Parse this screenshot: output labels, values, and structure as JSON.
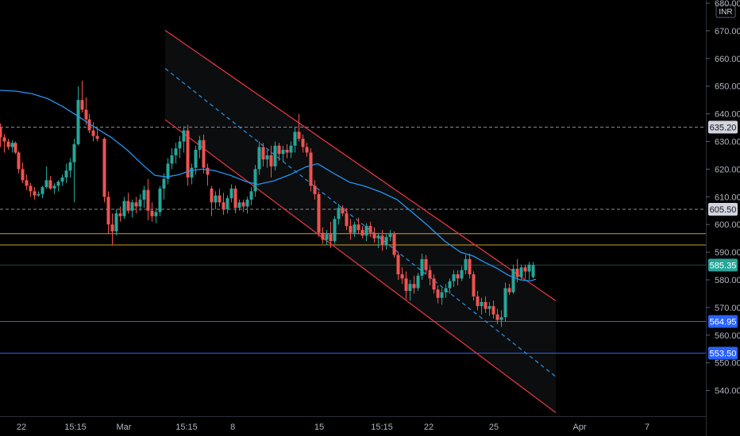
{
  "chart_data": {
    "type": "candlestick",
    "currency": "INR",
    "y_axis": {
      "range": [
        532,
        680
      ],
      "ticks": [
        "680.00",
        "670.00",
        "660.00",
        "650.00",
        "640.00",
        "630.00",
        "620.00",
        "610.00",
        "600.00",
        "590.00",
        "580.00",
        "570.00",
        "560.00",
        "550.00",
        "540.00"
      ]
    },
    "x_axis": {
      "ticks": [
        "22",
        "15:15",
        "Mar",
        "15:15",
        "8",
        "15",
        "15:15",
        "22",
        "25",
        "Apr",
        "7"
      ]
    },
    "price_lines": [
      {
        "label": "635.20",
        "price": 635.2,
        "style": "dashed",
        "color": "#8a8d94",
        "badge_bg": "#d1d4dc",
        "badge_fg": "dark"
      },
      {
        "label": "605.50",
        "price": 605.5,
        "style": "dashed",
        "color": "#8a8d94",
        "badge_bg": "#d1d4dc",
        "badge_fg": "dark"
      },
      {
        "label": "585.35",
        "price": 585.35,
        "style": "solid",
        "color": "#1c4a3a",
        "badge_bg": "#26a69a",
        "badge_fg": "light"
      },
      {
        "label": "564.95",
        "price": 564.95,
        "style": "solid",
        "color": "#2962ff",
        "badge_bg": "#2962ff",
        "badge_fg": "light"
      },
      {
        "label": "553.50",
        "price": 553.5,
        "style": "solid",
        "color": "#2962ff",
        "badge_bg": "#2962ff",
        "badge_fg": "light"
      }
    ],
    "horizontal_levels": [
      {
        "price": 596.7,
        "color": "#c9a227"
      },
      {
        "price": 592.6,
        "color": "#c9a227"
      }
    ],
    "channel": {
      "upper": [
        [
          208,
          670.2
        ],
        [
          700,
          572.4
        ]
      ],
      "lower": [
        [
          208,
          637.9
        ],
        [
          700,
          532.0
        ]
      ],
      "middle": [
        [
          208,
          656.4
        ],
        [
          700,
          545.0
        ]
      ],
      "color": "#f23645",
      "middle_color": "#2196f3"
    },
    "moving_average": {
      "color": "#2196f3",
      "points": [
        [
          0,
          648.5
        ],
        [
          20,
          648.2
        ],
        [
          40,
          647.3
        ],
        [
          60,
          645.5
        ],
        [
          80,
          642.5
        ],
        [
          100,
          638.8
        ],
        [
          120,
          635.0
        ],
        [
          140,
          631.5
        ],
        [
          160,
          627.0
        ],
        [
          180,
          621.5
        ],
        [
          195,
          617.8
        ],
        [
          210,
          617.2
        ],
        [
          225,
          618.0
        ],
        [
          240,
          619.5
        ],
        [
          255,
          620.0
        ],
        [
          270,
          619.5
        ],
        [
          290,
          617.8
        ],
        [
          310,
          615.5
        ],
        [
          325,
          614.5
        ],
        [
          345,
          615.8
        ],
        [
          365,
          618.0
        ],
        [
          385,
          620.8
        ],
        [
          400,
          622.0
        ],
        [
          420,
          618.5
        ],
        [
          440,
          615.3
        ],
        [
          460,
          613.8
        ],
        [
          480,
          611.7
        ],
        [
          500,
          609.0
        ],
        [
          520,
          604.2
        ],
        [
          540,
          599.3
        ],
        [
          560,
          594.0
        ],
        [
          580,
          590.0
        ],
        [
          596,
          588.6
        ],
        [
          610,
          586.4
        ],
        [
          625,
          584.3
        ],
        [
          640,
          581.7
        ],
        [
          655,
          580.0
        ],
        [
          668,
          579.6
        ],
        [
          675,
          580.2
        ]
      ]
    },
    "candles": [
      [
        0,
        635.0,
        636.5,
        628.0,
        631.5
      ],
      [
        5,
        631.5,
        632.7,
        626.0,
        630.0
      ],
      [
        10,
        630.0,
        631.0,
        627.0,
        628.0
      ],
      [
        15,
        628.0,
        630.5,
        626.0,
        629.5
      ],
      [
        19,
        629.5,
        630.0,
        625.5,
        626.0
      ],
      [
        23,
        626.0,
        626.5,
        618.5,
        620.0
      ],
      [
        28,
        620.0,
        622.5,
        615.0,
        616.0
      ],
      [
        33,
        616.0,
        618.0,
        612.5,
        614.0
      ],
      [
        38,
        614.0,
        615.0,
        610.0,
        612.0
      ],
      [
        43,
        612.0,
        613.5,
        609.0,
        610.5
      ],
      [
        48,
        610.5,
        612.0,
        610.0,
        611.0
      ],
      [
        53,
        611.0,
        614.0,
        609.5,
        613.5
      ],
      [
        58,
        613.5,
        621.0,
        613.0,
        616.0
      ],
      [
        63,
        616.0,
        617.5,
        612.5,
        613.0
      ],
      [
        68,
        613.0,
        615.0,
        611.0,
        614.0
      ],
      [
        73,
        614.0,
        616.0,
        612.0,
        615.5
      ],
      [
        78,
        615.5,
        618.0,
        614.0,
        617.0
      ],
      [
        83,
        617.0,
        622.0,
        615.0,
        619.5
      ],
      [
        88,
        619.5,
        624.0,
        617.0,
        622.5
      ],
      [
        93,
        622.5,
        631.0,
        608.0,
        629.0
      ],
      [
        98,
        629.0,
        650.0,
        628.5,
        645.0
      ],
      [
        103,
        645.0,
        652.0,
        640.5,
        641.5
      ],
      [
        108,
        641.5,
        646.0,
        636.0,
        638.0
      ],
      [
        112,
        638.0,
        640.0,
        633.0,
        634.0
      ],
      [
        117,
        634.0,
        637.0,
        630.0,
        632.0
      ],
      [
        122,
        632.0,
        635.0,
        630.0,
        631.0
      ],
      [
        131,
        631.0,
        631.5,
        608.0,
        610.0
      ],
      [
        136,
        610.0,
        612.0,
        596.5,
        600.0
      ],
      [
        141,
        600.0,
        604.0,
        592.5,
        597.5
      ],
      [
        146,
        597.5,
        605.5,
        596.0,
        604.0
      ],
      [
        151,
        604.0,
        606.5,
        601.0,
        603.0
      ],
      [
        156,
        603.0,
        610.0,
        602.0,
        608.5
      ],
      [
        161,
        608.5,
        611.5,
        604.0,
        605.0
      ],
      [
        166,
        605.0,
        609.0,
        602.5,
        608.0
      ],
      [
        171,
        608.0,
        610.0,
        604.0,
        606.5
      ],
      [
        176,
        606.5,
        611.0,
        605.0,
        609.0
      ],
      [
        181,
        609.0,
        614.0,
        606.0,
        612.5
      ],
      [
        186,
        612.5,
        616.5,
        601.5,
        605.0
      ],
      [
        191,
        605.0,
        608.0,
        601.0,
        603.0
      ],
      [
        196,
        603.0,
        606.0,
        600.5,
        604.5
      ],
      [
        201,
        604.5,
        614.0,
        603.0,
        613.0
      ],
      [
        206,
        613.0,
        618.5,
        609.0,
        616.5
      ],
      [
        211,
        616.5,
        624.0,
        614.5,
        622.0
      ],
      [
        216,
        622.0,
        627.5,
        620.0,
        625.0
      ],
      [
        221,
        625.0,
        629.5,
        622.0,
        627.5
      ],
      [
        226,
        627.5,
        632.0,
        624.0,
        630.0
      ],
      [
        231,
        630.0,
        635.5,
        626.0,
        634.0
      ],
      [
        236,
        634.0,
        636.0,
        614.0,
        617.0
      ],
      [
        241,
        617.0,
        622.0,
        614.5,
        620.5
      ],
      [
        246,
        620.5,
        628.5,
        618.0,
        627.0
      ],
      [
        251,
        627.0,
        632.0,
        624.0,
        630.5
      ],
      [
        256,
        630.5,
        632.5,
        618.5,
        620.5
      ],
      [
        261,
        620.5,
        622.0,
        614.0,
        618.0
      ],
      [
        266,
        613.0,
        614.0,
        603.0,
        608.0
      ],
      [
        271,
        608.0,
        612.0,
        605.5,
        610.5
      ],
      [
        276,
        610.5,
        613.0,
        606.5,
        608.0
      ],
      [
        281,
        608.0,
        611.5,
        603.5,
        605.5
      ],
      [
        286,
        605.5,
        610.5,
        604.0,
        609.5
      ],
      [
        291,
        609.5,
        614.5,
        608.0,
        613.0
      ],
      [
        296,
        613.0,
        614.0,
        604.0,
        606.0
      ],
      [
        301,
        606.0,
        609.0,
        605.0,
        608.0
      ],
      [
        306,
        608.0,
        609.0,
        604.5,
        606.5
      ],
      [
        311,
        606.5,
        610.0,
        604.0,
        609.0
      ],
      [
        316,
        609.0,
        613.5,
        607.0,
        612.0
      ],
      [
        321,
        612.0,
        621.5,
        610.0,
        620.0
      ],
      [
        326,
        620.0,
        630.0,
        618.0,
        628.0
      ],
      [
        331,
        628.0,
        629.5,
        621.0,
        623.5
      ],
      [
        336,
        623.5,
        627.0,
        620.5,
        625.0
      ],
      [
        341,
        625.0,
        628.5,
        617.0,
        621.0
      ],
      [
        346,
        621.0,
        630.0,
        619.5,
        628.5
      ],
      [
        351,
        628.5,
        629.5,
        623.0,
        625.5
      ],
      [
        356,
        625.5,
        628.5,
        622.5,
        627.0
      ],
      [
        361,
        627.0,
        629.0,
        624.0,
        626.0
      ],
      [
        366,
        626.0,
        630.0,
        624.0,
        628.5
      ],
      [
        371,
        628.5,
        635.0,
        626.0,
        633.5
      ],
      [
        376,
        633.5,
        640.0,
        630.0,
        631.0
      ],
      [
        381,
        631.0,
        632.5,
        626.0,
        628.0
      ],
      [
        386,
        628.0,
        629.5,
        624.5,
        626.0
      ],
      [
        391,
        626.0,
        627.5,
        612.0,
        614.0
      ],
      [
        396,
        614.0,
        616.0,
        609.0,
        611.0
      ],
      [
        401,
        611.0,
        612.0,
        595.5,
        597.0
      ],
      [
        406,
        597.0,
        599.0,
        593.0,
        594.5
      ],
      [
        411,
        594.5,
        598.0,
        592.5,
        596.5
      ],
      [
        416,
        596.5,
        601.0,
        591.5,
        594.0
      ],
      [
        421,
        594.0,
        603.0,
        593.0,
        602.0
      ],
      [
        426,
        602.0,
        607.5,
        600.0,
        606.0
      ],
      [
        431,
        606.0,
        607.0,
        603.0,
        604.0
      ],
      [
        436,
        604.0,
        606.0,
        598.0,
        599.5
      ],
      [
        441,
        599.5,
        602.0,
        594.5,
        597.0
      ],
      [
        446,
        597.0,
        601.0,
        595.5,
        600.0
      ],
      [
        451,
        600.0,
        602.5,
        596.5,
        598.0
      ],
      [
        456,
        598.0,
        599.5,
        595.0,
        596.0
      ],
      [
        461,
        596.0,
        600.5,
        594.0,
        599.5
      ],
      [
        466,
        599.5,
        601.0,
        595.5,
        597.0
      ],
      [
        471,
        597.0,
        599.0,
        593.5,
        595.0
      ],
      [
        476,
        595.0,
        597.0,
        591.5,
        596.0
      ],
      [
        481,
        596.0,
        598.0,
        590.5,
        592.5
      ],
      [
        486,
        592.5,
        596.5,
        591.0,
        595.5
      ],
      [
        491,
        595.5,
        598.0,
        594.0,
        596.5
      ],
      [
        496,
        596.5,
        597.5,
        588.0,
        589.0
      ],
      [
        501,
        589.0,
        590.0,
        580.0,
        582.0
      ],
      [
        506,
        582.0,
        584.5,
        578.5,
        580.5
      ],
      [
        511,
        580.5,
        583.0,
        573.0,
        576.0
      ],
      [
        516,
        576.0,
        580.0,
        572.5,
        578.5
      ],
      [
        521,
        578.5,
        581.5,
        575.0,
        577.0
      ],
      [
        526,
        577.0,
        582.5,
        576.0,
        581.5
      ],
      [
        531,
        581.5,
        589.5,
        580.0,
        587.5
      ],
      [
        536,
        587.5,
        589.0,
        582.0,
        583.5
      ],
      [
        541,
        583.5,
        585.0,
        578.0,
        580.5
      ],
      [
        546,
        580.5,
        582.0,
        575.0,
        576.5
      ],
      [
        551,
        576.5,
        578.0,
        571.5,
        573.5
      ],
      [
        556,
        573.5,
        577.0,
        571.0,
        575.5
      ],
      [
        561,
        575.5,
        578.5,
        573.5,
        577.0
      ],
      [
        566,
        577.0,
        580.5,
        575.0,
        579.5
      ],
      [
        571,
        579.5,
        583.5,
        577.5,
        582.0
      ],
      [
        576,
        582.0,
        583.5,
        578.0,
        580.5
      ],
      [
        581,
        580.5,
        585.0,
        579.5,
        583.5
      ],
      [
        586,
        583.5,
        589.0,
        582.0,
        587.5
      ],
      [
        591,
        587.5,
        589.5,
        580.5,
        582.0
      ],
      [
        596,
        582.0,
        583.0,
        572.5,
        574.0
      ],
      [
        601,
        574.0,
        576.0,
        569.0,
        570.5
      ],
      [
        606,
        570.5,
        573.5,
        567.5,
        572.0
      ],
      [
        611,
        572.0,
        574.0,
        568.0,
        569.5
      ],
      [
        616,
        569.5,
        572.0,
        567.0,
        570.5
      ],
      [
        621,
        570.5,
        572.5,
        566.0,
        567.5
      ],
      [
        626,
        567.5,
        569.5,
        564.0,
        565.5
      ],
      [
        631,
        565.5,
        569.0,
        563.0,
        566.5
      ],
      [
        636,
        566.5,
        579.0,
        565.0,
        577.0
      ],
      [
        641,
        577.0,
        578.5,
        574.5,
        575.5
      ],
      [
        646,
        575.5,
        585.5,
        575.0,
        584.0
      ],
      [
        651,
        584.0,
        587.5,
        579.0,
        581.0
      ],
      [
        656,
        581.0,
        585.5,
        580.0,
        584.5
      ],
      [
        661,
        584.5,
        585.5,
        580.5,
        583.0
      ],
      [
        666,
        583.0,
        586.5,
        580.0,
        585.5
      ],
      [
        671,
        581.0,
        586.5,
        580.5,
        585.35
      ]
    ]
  }
}
